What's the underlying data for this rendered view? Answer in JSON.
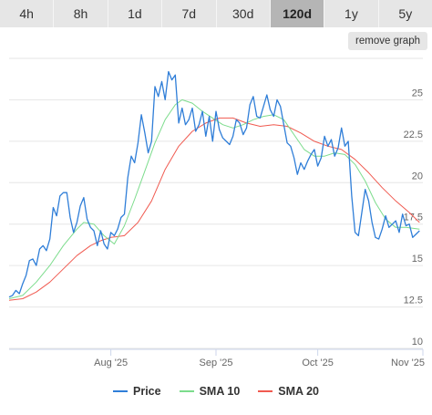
{
  "tabs": [
    {
      "label": "4h",
      "active": false
    },
    {
      "label": "8h",
      "active": false
    },
    {
      "label": "1d",
      "active": false
    },
    {
      "label": "7d",
      "active": false
    },
    {
      "label": "30d",
      "active": false
    },
    {
      "label": "120d",
      "active": true
    },
    {
      "label": "1y",
      "active": false
    },
    {
      "label": "5y",
      "active": false
    }
  ],
  "remove_graph_label": "remove graph",
  "colors": {
    "price": "#2f7ed8",
    "sma10": "#7cdc8c",
    "sma20": "#f05a50",
    "grid": "#e6e6e6",
    "text": "#666666"
  },
  "chart_data": {
    "type": "line",
    "title": "",
    "xlabel": "",
    "ylabel": "",
    "ylim": [
      10,
      27.5
    ],
    "y_ticks": [
      "10",
      "12.5",
      "15",
      "17.5",
      "20",
      "22.5",
      "25"
    ],
    "y_tick_values": [
      10,
      12.5,
      15,
      17.5,
      20,
      22.5,
      25
    ],
    "x_ticks": [
      "Aug '25",
      "Sep '25",
      "Oct '25",
      "Nov '25"
    ],
    "x_tick_values": [
      "2025-08-01",
      "2025-09-01",
      "2025-10-01",
      "2025-11-01"
    ],
    "x_range": [
      "2025-07-02",
      "2025-11-01"
    ],
    "grid": true,
    "legend": "bottom",
    "series": [
      {
        "name": "Price",
        "color": "#2f7ed8",
        "points": [
          [
            "2025-07-02",
            13.1
          ],
          [
            "2025-07-03",
            13.2
          ],
          [
            "2025-07-04",
            13.5
          ],
          [
            "2025-07-05",
            13.3
          ],
          [
            "2025-07-06",
            13.9
          ],
          [
            "2025-07-07",
            14.4
          ],
          [
            "2025-07-08",
            15.3
          ],
          [
            "2025-07-09",
            15.4
          ],
          [
            "2025-07-10",
            15.0
          ],
          [
            "2025-07-11",
            16.0
          ],
          [
            "2025-07-12",
            16.2
          ],
          [
            "2025-07-13",
            15.9
          ],
          [
            "2025-07-14",
            16.6
          ],
          [
            "2025-07-15",
            18.5
          ],
          [
            "2025-07-16",
            18.0
          ],
          [
            "2025-07-17",
            19.2
          ],
          [
            "2025-07-18",
            19.4
          ],
          [
            "2025-07-19",
            19.4
          ],
          [
            "2025-07-20",
            17.9
          ],
          [
            "2025-07-21",
            17.0
          ],
          [
            "2025-07-22",
            17.6
          ],
          [
            "2025-07-23",
            18.6
          ],
          [
            "2025-07-24",
            19.1
          ],
          [
            "2025-07-25",
            17.8
          ],
          [
            "2025-07-26",
            17.3
          ],
          [
            "2025-07-27",
            17.1
          ],
          [
            "2025-07-28",
            16.2
          ],
          [
            "2025-07-29",
            17.1
          ],
          [
            "2025-07-30",
            16.3
          ],
          [
            "2025-07-31",
            16.0
          ],
          [
            "2025-08-01",
            17.0
          ],
          [
            "2025-08-02",
            16.8
          ],
          [
            "2025-08-03",
            17.2
          ],
          [
            "2025-08-04",
            17.9
          ],
          [
            "2025-08-05",
            18.1
          ],
          [
            "2025-08-06",
            20.3
          ],
          [
            "2025-08-07",
            21.6
          ],
          [
            "2025-08-08",
            21.2
          ],
          [
            "2025-08-09",
            22.4
          ],
          [
            "2025-08-10",
            24.1
          ],
          [
            "2025-08-11",
            23.0
          ],
          [
            "2025-08-12",
            21.8
          ],
          [
            "2025-08-13",
            22.5
          ],
          [
            "2025-08-14",
            25.8
          ],
          [
            "2025-08-15",
            25.2
          ],
          [
            "2025-08-16",
            26.1
          ],
          [
            "2025-08-17",
            25.0
          ],
          [
            "2025-08-18",
            26.7
          ],
          [
            "2025-08-19",
            26.2
          ],
          [
            "2025-08-20",
            26.5
          ],
          [
            "2025-08-21",
            23.6
          ],
          [
            "2025-08-22",
            24.5
          ],
          [
            "2025-08-23",
            23.5
          ],
          [
            "2025-08-24",
            23.8
          ],
          [
            "2025-08-25",
            24.5
          ],
          [
            "2025-08-26",
            23.1
          ],
          [
            "2025-08-27",
            23.5
          ],
          [
            "2025-08-28",
            24.3
          ],
          [
            "2025-08-29",
            22.8
          ],
          [
            "2025-08-30",
            24.0
          ],
          [
            "2025-08-31",
            22.5
          ],
          [
            "2025-09-01",
            24.3
          ],
          [
            "2025-09-02",
            23.2
          ],
          [
            "2025-09-03",
            22.7
          ],
          [
            "2025-09-04",
            22.5
          ],
          [
            "2025-09-05",
            22.3
          ],
          [
            "2025-09-06",
            22.8
          ],
          [
            "2025-09-07",
            23.8
          ],
          [
            "2025-09-08",
            23.6
          ],
          [
            "2025-09-09",
            22.9
          ],
          [
            "2025-09-10",
            23.3
          ],
          [
            "2025-09-11",
            24.7
          ],
          [
            "2025-09-12",
            25.2
          ],
          [
            "2025-09-13",
            24.0
          ],
          [
            "2025-09-14",
            23.9
          ],
          [
            "2025-09-15",
            24.6
          ],
          [
            "2025-09-16",
            25.3
          ],
          [
            "2025-09-17",
            24.4
          ],
          [
            "2025-09-18",
            24.0
          ],
          [
            "2025-09-19",
            25.0
          ],
          [
            "2025-09-20",
            24.6
          ],
          [
            "2025-09-21",
            23.5
          ],
          [
            "2025-09-22",
            22.4
          ],
          [
            "2025-09-23",
            22.2
          ],
          [
            "2025-09-24",
            21.5
          ],
          [
            "2025-09-25",
            20.5
          ],
          [
            "2025-09-26",
            21.2
          ],
          [
            "2025-09-27",
            20.8
          ],
          [
            "2025-09-28",
            21.3
          ],
          [
            "2025-09-29",
            21.7
          ],
          [
            "2025-09-30",
            22.0
          ],
          [
            "2025-10-01",
            21.0
          ],
          [
            "2025-10-02",
            21.5
          ],
          [
            "2025-10-03",
            22.8
          ],
          [
            "2025-10-04",
            22.2
          ],
          [
            "2025-10-05",
            22.6
          ],
          [
            "2025-10-06",
            21.6
          ],
          [
            "2025-10-07",
            22.1
          ],
          [
            "2025-10-08",
            23.3
          ],
          [
            "2025-10-09",
            22.2
          ],
          [
            "2025-10-10",
            22.5
          ],
          [
            "2025-10-11",
            19.2
          ],
          [
            "2025-10-12",
            17.0
          ],
          [
            "2025-10-13",
            16.8
          ],
          [
            "2025-10-14",
            18.2
          ],
          [
            "2025-10-15",
            19.6
          ],
          [
            "2025-10-16",
            18.9
          ],
          [
            "2025-10-17",
            17.6
          ],
          [
            "2025-10-18",
            16.7
          ],
          [
            "2025-10-19",
            16.6
          ],
          [
            "2025-10-20",
            17.2
          ],
          [
            "2025-10-21",
            18.0
          ],
          [
            "2025-10-22",
            17.3
          ],
          [
            "2025-10-23",
            17.5
          ],
          [
            "2025-10-24",
            17.7
          ],
          [
            "2025-10-25",
            17.0
          ],
          [
            "2025-10-26",
            18.1
          ],
          [
            "2025-10-27",
            17.4
          ],
          [
            "2025-10-28",
            17.5
          ],
          [
            "2025-10-29",
            16.7
          ],
          [
            "2025-10-30",
            16.9
          ],
          [
            "2025-10-31",
            17.1
          ]
        ]
      },
      {
        "name": "SMA 10",
        "color": "#7cdc8c",
        "points": [
          [
            "2025-07-02",
            13.0
          ],
          [
            "2025-07-06",
            13.2
          ],
          [
            "2025-07-10",
            14.0
          ],
          [
            "2025-07-14",
            15.0
          ],
          [
            "2025-07-18",
            16.2
          ],
          [
            "2025-07-22",
            17.2
          ],
          [
            "2025-07-24",
            17.6
          ],
          [
            "2025-07-27",
            17.5
          ],
          [
            "2025-07-30",
            16.8
          ],
          [
            "2025-08-02",
            16.3
          ],
          [
            "2025-08-05",
            17.4
          ],
          [
            "2025-08-08",
            19.0
          ],
          [
            "2025-08-11",
            20.7
          ],
          [
            "2025-08-14",
            22.4
          ],
          [
            "2025-08-17",
            23.8
          ],
          [
            "2025-08-20",
            24.7
          ],
          [
            "2025-08-22",
            25.0
          ],
          [
            "2025-08-25",
            24.8
          ],
          [
            "2025-08-28",
            24.3
          ],
          [
            "2025-08-31",
            23.9
          ],
          [
            "2025-09-03",
            23.5
          ],
          [
            "2025-09-06",
            23.3
          ],
          [
            "2025-09-09",
            23.5
          ],
          [
            "2025-09-12",
            23.8
          ],
          [
            "2025-09-15",
            24.0
          ],
          [
            "2025-09-18",
            24.1
          ],
          [
            "2025-09-21",
            23.8
          ],
          [
            "2025-09-24",
            22.9
          ],
          [
            "2025-09-27",
            22.0
          ],
          [
            "2025-09-30",
            21.6
          ],
          [
            "2025-10-03",
            21.6
          ],
          [
            "2025-10-06",
            21.8
          ],
          [
            "2025-10-09",
            21.7
          ],
          [
            "2025-10-12",
            21.1
          ],
          [
            "2025-10-15",
            20.1
          ],
          [
            "2025-10-18",
            18.8
          ],
          [
            "2025-10-21",
            17.8
          ],
          [
            "2025-10-24",
            17.3
          ],
          [
            "2025-10-27",
            17.3
          ],
          [
            "2025-10-31",
            17.2
          ]
        ]
      },
      {
        "name": "SMA 20",
        "color": "#f05a50",
        "points": [
          [
            "2025-07-02",
            12.9
          ],
          [
            "2025-07-06",
            13.0
          ],
          [
            "2025-07-10",
            13.4
          ],
          [
            "2025-07-14",
            14.0
          ],
          [
            "2025-07-18",
            14.8
          ],
          [
            "2025-07-22",
            15.6
          ],
          [
            "2025-07-26",
            16.2
          ],
          [
            "2025-07-29",
            16.5
          ],
          [
            "2025-08-01",
            16.7
          ],
          [
            "2025-08-05",
            16.8
          ],
          [
            "2025-08-09",
            17.6
          ],
          [
            "2025-08-13",
            18.9
          ],
          [
            "2025-08-17",
            20.8
          ],
          [
            "2025-08-21",
            22.2
          ],
          [
            "2025-08-25",
            23.1
          ],
          [
            "2025-08-29",
            23.6
          ],
          [
            "2025-09-02",
            23.9
          ],
          [
            "2025-09-06",
            23.9
          ],
          [
            "2025-09-10",
            23.6
          ],
          [
            "2025-09-14",
            23.4
          ],
          [
            "2025-09-18",
            23.5
          ],
          [
            "2025-09-22",
            23.4
          ],
          [
            "2025-09-26",
            23.0
          ],
          [
            "2025-09-30",
            22.5
          ],
          [
            "2025-10-04",
            22.2
          ],
          [
            "2025-10-08",
            22.0
          ],
          [
            "2025-10-12",
            21.4
          ],
          [
            "2025-10-16",
            20.6
          ],
          [
            "2025-10-20",
            19.7
          ],
          [
            "2025-10-24",
            18.9
          ],
          [
            "2025-10-28",
            18.2
          ],
          [
            "2025-10-31",
            17.6
          ]
        ]
      }
    ]
  }
}
